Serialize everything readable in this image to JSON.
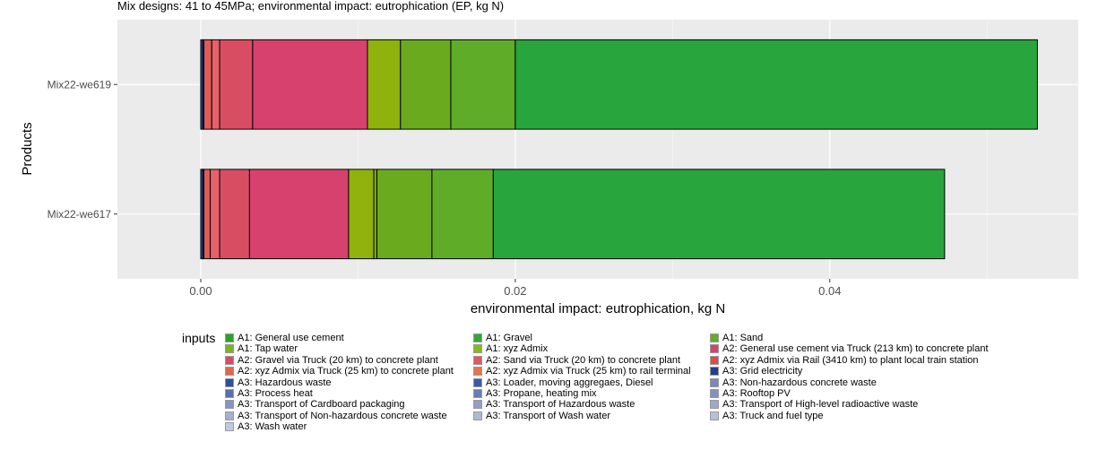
{
  "chart_data": {
    "type": "bar",
    "orientation": "horizontal",
    "stacked": true,
    "title": "Mix designs: 41 to 45MPa; environmental impact: eutrophication (EP, kg N)",
    "xlabel": "environmental impact: eutrophication, kg N",
    "ylabel": "Products",
    "categories": [
      "Mix22-we619",
      "Mix22-we617"
    ],
    "xlim": [
      -0.0053,
      0.0558
    ],
    "x_ticks": [
      0.0,
      0.02,
      0.04
    ],
    "x_tick_labels": [
      "0.00",
      "0.02",
      "0.04"
    ],
    "grid": true,
    "legend_position": "bottom",
    "segments": [
      {
        "category": "Mix22-we619",
        "values": [
          0.00015,
          5e-05,
          0.0005,
          0.0005,
          0.0021,
          0.0073,
          0.0021,
          0.0032,
          0.0041,
          0.0332
        ],
        "colors": [
          "#1f3f8f",
          "#7a87bf",
          "#e05a5a",
          "#e8606a",
          "#d94d62",
          "#d6426d",
          "#8fb20d",
          "#6aaa1f",
          "#5fac28",
          "#28a53d"
        ]
      },
      {
        "category": "Mix22-we617",
        "values": [
          0.00015,
          5e-05,
          0.0004,
          0.0006,
          0.0019,
          0.0063,
          0.0016,
          0.0002,
          0.0035,
          0.0039,
          0.0287
        ],
        "colors": [
          "#1f3f8f",
          "#7a87bf",
          "#e05a5a",
          "#e8606a",
          "#d94d62",
          "#d6426d",
          "#8fb20d",
          "#7aa80f",
          "#6aaa1f",
          "#5fac28",
          "#28a53d"
        ]
      }
    ],
    "legend_title": "inputs",
    "legend_entries": [
      {
        "label": "A1: General use cement",
        "color": "#2ca02c"
      },
      {
        "label": "A1: Tap water",
        "color": "#7cb41f"
      },
      {
        "label": "A2: Gravel via Truck (20 km) to concrete plant",
        "color": "#d94d62"
      },
      {
        "label": "A2: xyz Admix via Truck (25 km) to concrete plant",
        "color": "#e5644f"
      },
      {
        "label": "A3: Hazardous waste",
        "color": "#2d4f9e"
      },
      {
        "label": "A3: Process heat",
        "color": "#5b6fb0"
      },
      {
        "label": "A3: Transport of Cardboard packaging",
        "color": "#8894c4"
      },
      {
        "label": "A3: Transport of Non-hazardous concrete waste",
        "color": "#a7afd2"
      },
      {
        "label": "A3: Wash water",
        "color": "#c2c8df"
      },
      {
        "label": "A1: Gravel",
        "color": "#37a635"
      },
      {
        "label": "A1: xyz Admix",
        "color": "#8cb81a"
      },
      {
        "label": "A2: Sand via Truck (20 km) to concrete plant",
        "color": "#e05a5a"
      },
      {
        "label": "A2: xyz Admix via Truck (25 km) to rail terminal",
        "color": "#e8734a"
      },
      {
        "label": "A3: Loader, moving aggregaes, Diesel",
        "color": "#3a5aa6"
      },
      {
        "label": "A3: Propane, heating mix",
        "color": "#6a7cb8"
      },
      {
        "label": "A3: Transport of Hazardous waste",
        "color": "#929dc9"
      },
      {
        "label": "A3: Transport of Wash water",
        "color": "#b0b8d7"
      },
      {
        "label": "A1: Sand",
        "color": "#5fae28"
      },
      {
        "label": "A2: General use cement via Truck (213 km) to concrete plant",
        "color": "#d6426d"
      },
      {
        "label": "A2: xyz Admix via Rail (3410 km) to plant local train station",
        "color": "#e04a4f"
      },
      {
        "label": "A3: Grid electricity",
        "color": "#1f3f8f"
      },
      {
        "label": "A3: Non-hazardous concrete waste",
        "color": "#7a87bf"
      },
      {
        "label": "A3: Rooftop PV",
        "color": "#8290c2"
      },
      {
        "label": "A3: Transport of High-level radioactive waste",
        "color": "#9ea7cf"
      },
      {
        "label": "A3: Truck and fuel type",
        "color": "#b8bfdb"
      }
    ]
  }
}
